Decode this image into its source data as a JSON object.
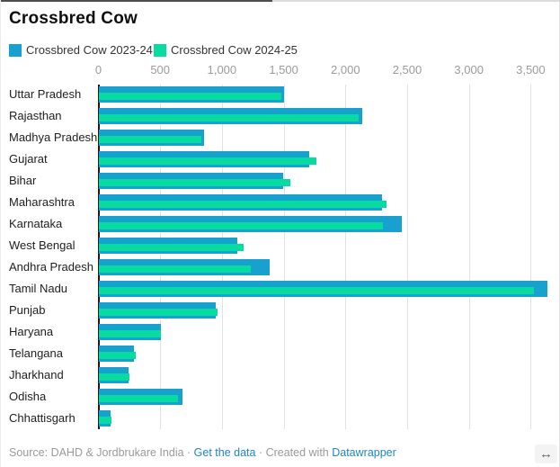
{
  "header": {
    "title": "Crossbred Cow"
  },
  "legend": [
    {
      "label": "Crossbred Cow 2023-24",
      "color": "#18a0ce"
    },
    {
      "label": "Crossbred Cow 2024-25",
      "color": "#06dca0"
    }
  ],
  "chart_data": {
    "type": "bar",
    "orientation": "horizontal",
    "title": "Crossbred Cow",
    "categories": [
      "Uttar Pradesh",
      "Rajasthan",
      "Madhya Pradesh",
      "Gujarat",
      "Bihar",
      "Maharashtra",
      "Karnataka",
      "West Bengal",
      "Andhra Pradesh",
      "Tamil Nadu",
      "Punjab",
      "Haryana",
      "Telangana",
      "Jharkhand",
      "Odisha",
      "Chhattisgarh"
    ],
    "series": [
      {
        "name": "Crossbred Cow 2023-24",
        "color": "#18a0ce",
        "values": [
          1500,
          2130,
          850,
          1700,
          1490,
          2290,
          2450,
          1120,
          1380,
          3630,
          945,
          505,
          285,
          240,
          675,
          95
        ]
      },
      {
        "name": "Crossbred Cow 2024-25",
        "color": "#06dca0",
        "values": [
          1480,
          2100,
          830,
          1760,
          1550,
          2330,
          2300,
          1170,
          1230,
          3520,
          960,
          505,
          295,
          250,
          640,
          100
        ]
      }
    ],
    "x_ticks": [
      0,
      500,
      1000,
      1500,
      2000,
      2500,
      3000,
      3500
    ],
    "x_tick_labels": [
      "0",
      "500",
      "1,000",
      "1,500",
      "2,000",
      "2,500",
      "3,000",
      "3,500"
    ],
    "xlim": [
      0,
      3660
    ],
    "grid": true,
    "legend_position": "top",
    "bar_style": "overlapped"
  },
  "footer": {
    "source_prefix": "Source: ",
    "source_name": "DAHD & Jordbrukare India",
    "separator": " · ",
    "data_link": "Get the data",
    "created_prefix": "Created with ",
    "created_link": "Datawrapper",
    "link_color": "#1d86c8"
  },
  "icons": {
    "resize": "↔"
  }
}
